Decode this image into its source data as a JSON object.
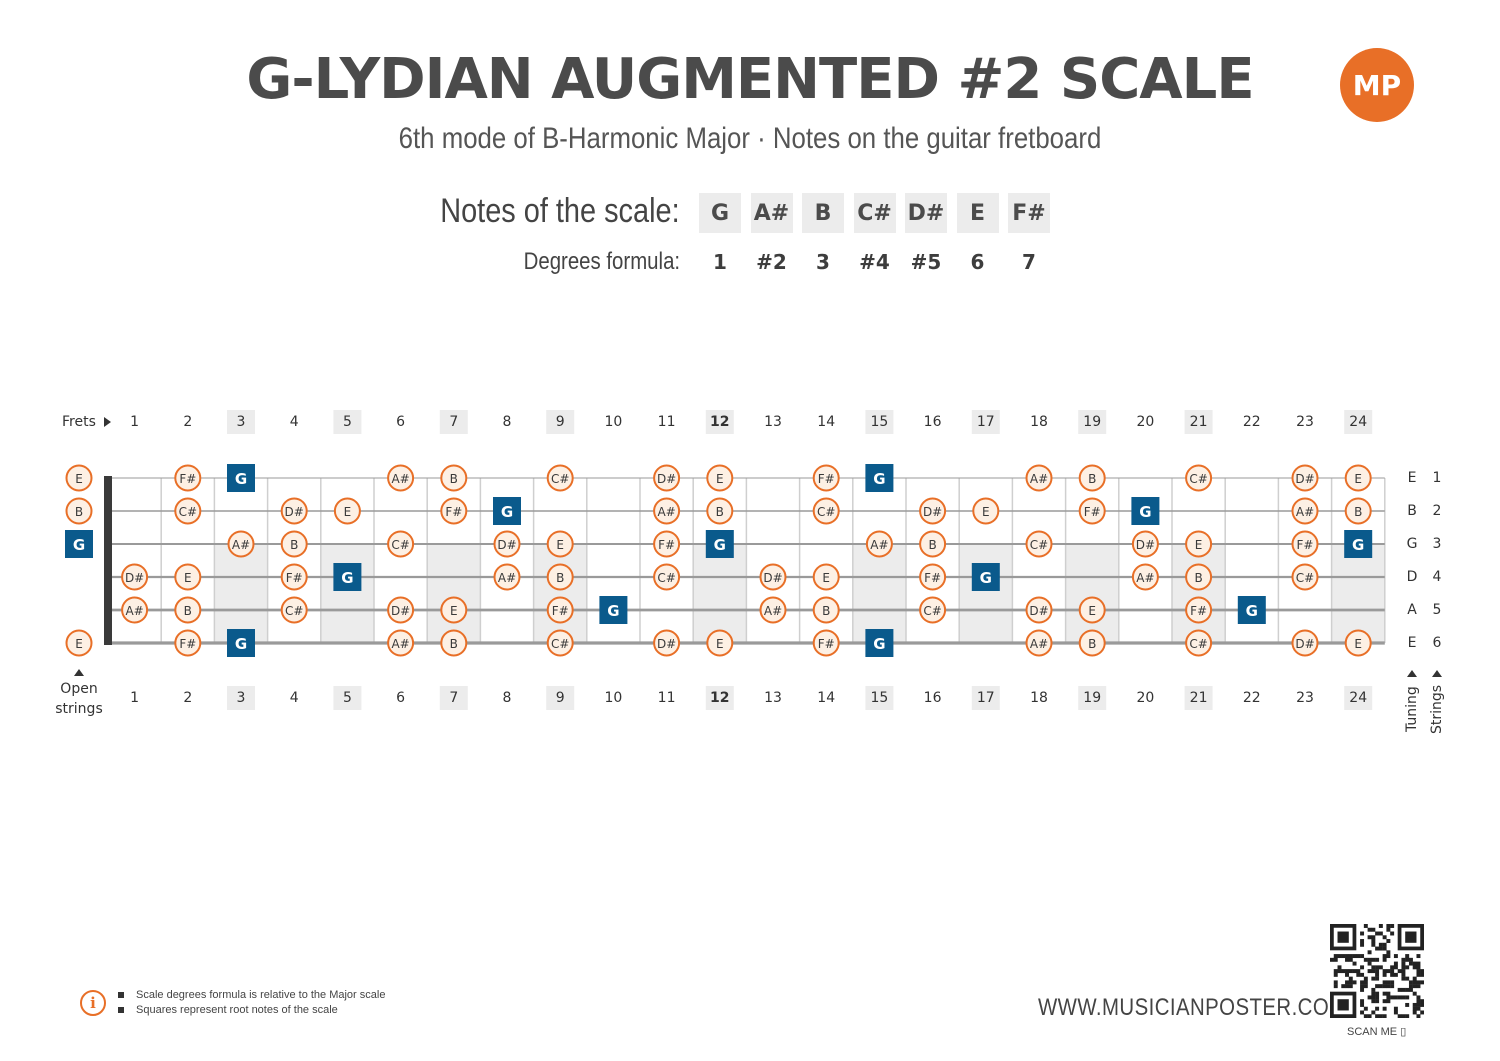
{
  "title": "G-LYDIAN AUGMENTED #2 SCALE",
  "subtitle": "6th mode of B-Harmonic Major  ·  Notes on the guitar fretboard",
  "logo": "MP",
  "scale": {
    "notes_label": "Notes of the scale:",
    "degrees_label": "Degrees formula:",
    "notes": [
      "G",
      "A#",
      "B",
      "C#",
      "D#",
      "E",
      "F#"
    ],
    "degrees": [
      "1",
      "#2",
      "3",
      "#4",
      "#5",
      "6",
      "7"
    ]
  },
  "fretboard": {
    "frets_label": "Frets",
    "open_label_1": "Open",
    "open_label_2": "strings",
    "tuning_label": "Tuning",
    "strings_label": "Strings",
    "fret_numbers": [
      "1",
      "2",
      "3",
      "4",
      "5",
      "6",
      "7",
      "8",
      "9",
      "10",
      "11",
      "12",
      "13",
      "14",
      "15",
      "16",
      "17",
      "18",
      "19",
      "20",
      "21",
      "22",
      "23",
      "24"
    ],
    "highlighted_frets": [
      3,
      5,
      7,
      9,
      12,
      15,
      17,
      19,
      21,
      24
    ],
    "tuning": [
      "E",
      "B",
      "G",
      "D",
      "A",
      "E"
    ],
    "string_numbers": [
      "1",
      "2",
      "3",
      "4",
      "5",
      "6"
    ],
    "root_note": "G",
    "strings": [
      {
        "open": "E",
        "frets": [
          [
            2,
            "F#"
          ],
          [
            3,
            "G"
          ],
          [
            6,
            "A#"
          ],
          [
            7,
            "B"
          ],
          [
            9,
            "C#"
          ],
          [
            11,
            "D#"
          ],
          [
            12,
            "E"
          ],
          [
            14,
            "F#"
          ],
          [
            15,
            "G"
          ],
          [
            18,
            "A#"
          ],
          [
            19,
            "B"
          ],
          [
            21,
            "C#"
          ],
          [
            23,
            "D#"
          ],
          [
            24,
            "E"
          ]
        ]
      },
      {
        "open": "B",
        "frets": [
          [
            2,
            "C#"
          ],
          [
            4,
            "D#"
          ],
          [
            5,
            "E"
          ],
          [
            7,
            "F#"
          ],
          [
            8,
            "G"
          ],
          [
            11,
            "A#"
          ],
          [
            12,
            "B"
          ],
          [
            14,
            "C#"
          ],
          [
            16,
            "D#"
          ],
          [
            17,
            "E"
          ],
          [
            19,
            "F#"
          ],
          [
            20,
            "G"
          ],
          [
            23,
            "A#"
          ],
          [
            24,
            "B"
          ]
        ]
      },
      {
        "open": "G",
        "frets": [
          [
            3,
            "A#"
          ],
          [
            4,
            "B"
          ],
          [
            6,
            "C#"
          ],
          [
            8,
            "D#"
          ],
          [
            9,
            "E"
          ],
          [
            11,
            "F#"
          ],
          [
            12,
            "G"
          ],
          [
            15,
            "A#"
          ],
          [
            16,
            "B"
          ],
          [
            18,
            "C#"
          ],
          [
            20,
            "D#"
          ],
          [
            21,
            "E"
          ],
          [
            23,
            "F#"
          ],
          [
            24,
            "G"
          ]
        ]
      },
      {
        "open": "",
        "frets": [
          [
            1,
            "D#"
          ],
          [
            2,
            "E"
          ],
          [
            4,
            "F#"
          ],
          [
            5,
            "G"
          ],
          [
            8,
            "A#"
          ],
          [
            9,
            "B"
          ],
          [
            11,
            "C#"
          ],
          [
            13,
            "D#"
          ],
          [
            14,
            "E"
          ],
          [
            16,
            "F#"
          ],
          [
            17,
            "G"
          ],
          [
            20,
            "A#"
          ],
          [
            21,
            "B"
          ],
          [
            23,
            "C#"
          ]
        ]
      },
      {
        "open": "",
        "frets": [
          [
            1,
            "A#"
          ],
          [
            2,
            "B"
          ],
          [
            4,
            "C#"
          ],
          [
            6,
            "D#"
          ],
          [
            7,
            "E"
          ],
          [
            9,
            "F#"
          ],
          [
            10,
            "G"
          ],
          [
            13,
            "A#"
          ],
          [
            14,
            "B"
          ],
          [
            16,
            "C#"
          ],
          [
            18,
            "D#"
          ],
          [
            19,
            "E"
          ],
          [
            21,
            "F#"
          ],
          [
            22,
            "G"
          ]
        ]
      },
      {
        "open": "E",
        "frets": [
          [
            2,
            "F#"
          ],
          [
            3,
            "G"
          ],
          [
            6,
            "A#"
          ],
          [
            7,
            "B"
          ],
          [
            9,
            "C#"
          ],
          [
            11,
            "D#"
          ],
          [
            12,
            "E"
          ],
          [
            14,
            "F#"
          ],
          [
            15,
            "G"
          ],
          [
            18,
            "A#"
          ],
          [
            19,
            "B"
          ],
          [
            21,
            "C#"
          ],
          [
            23,
            "D#"
          ],
          [
            24,
            "E"
          ]
        ]
      }
    ]
  },
  "footer": {
    "info_icon": "info-icon",
    "notes": [
      "Scale degrees formula is relative to the Major scale",
      "Squares represent root notes of the scale"
    ],
    "website": "WWW.MUSICIANPOSTER.COM",
    "scan_me": "SCAN ME"
  },
  "colors": {
    "accent": "#e86f27",
    "root": "#0a5a8c",
    "highlight": "#ececec",
    "note_fill": "#fdf0e4"
  }
}
